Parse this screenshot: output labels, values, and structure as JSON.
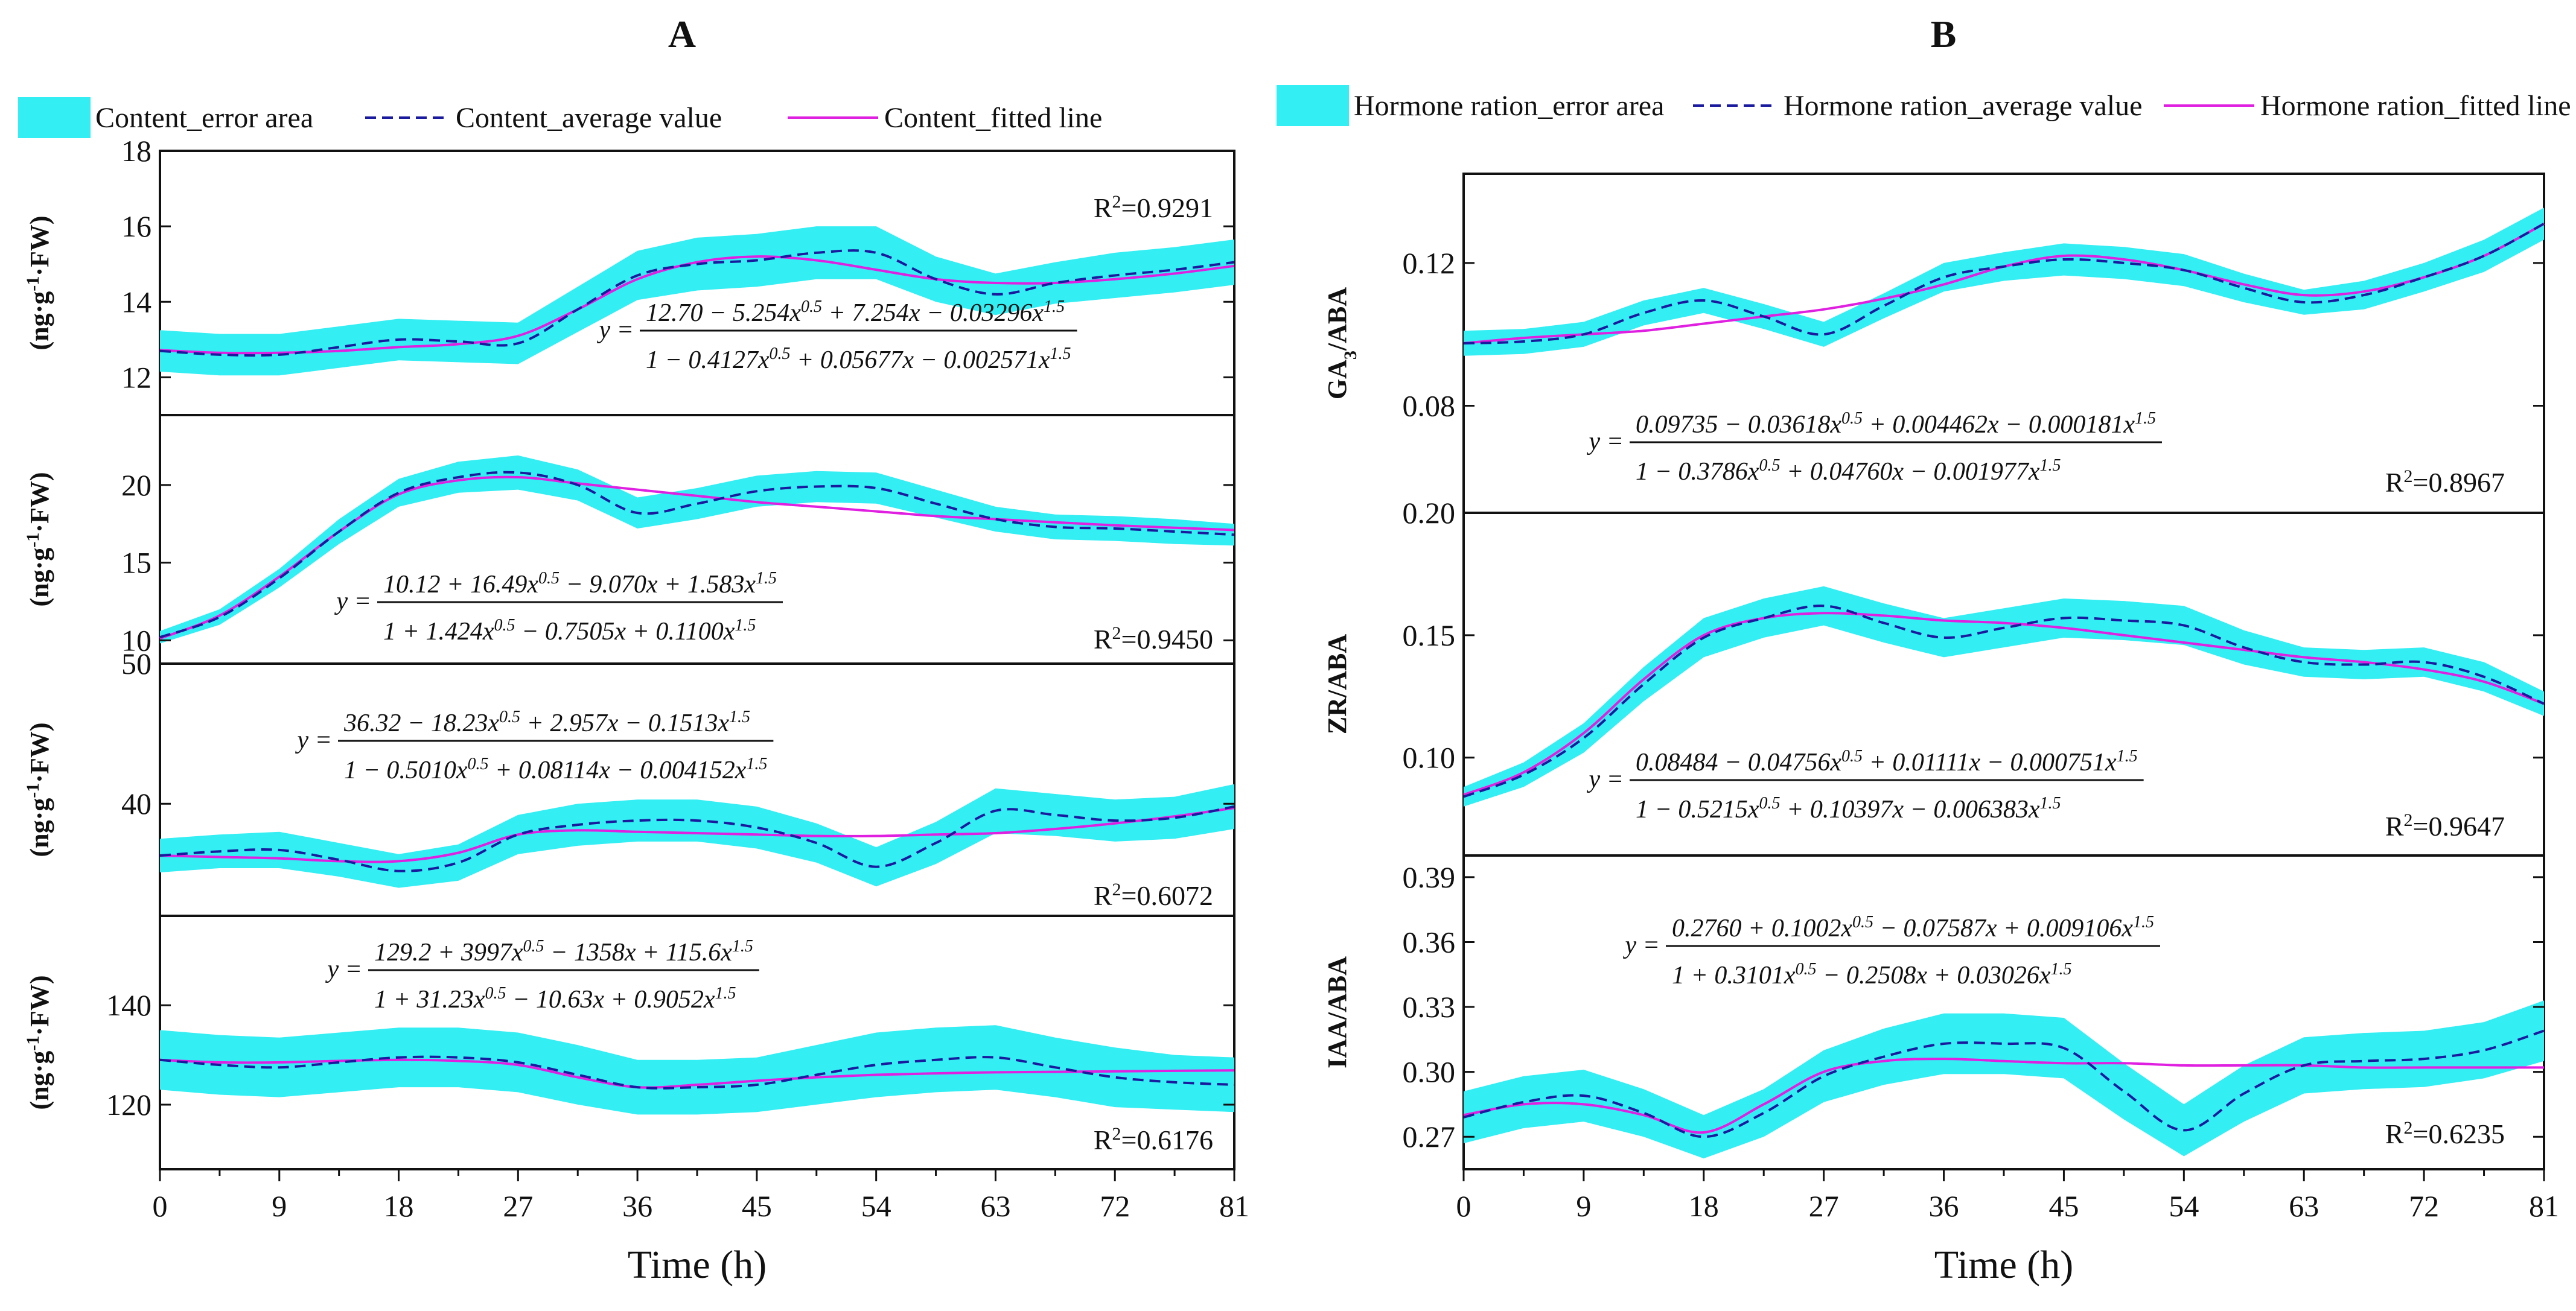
{
  "panel_letters": {
    "a": "A",
    "b": "B"
  },
  "legend_a": {
    "error_label": "Content_error area",
    "average_label": "Content_average value",
    "fitted_label": "Content_fitted line"
  },
  "legend_b": {
    "error_label": "Hormone ration_error area",
    "average_label": "Hormone ration_average value",
    "fitted_label": "Hormone ration_fitted line"
  },
  "colors": {
    "error_fill": "#33eef3",
    "average": "#1a1a9e",
    "fitted": "#e020e0"
  },
  "x_axis": {
    "label": "Time (h)",
    "ticks": [
      "0",
      "9",
      "18",
      "27",
      "36",
      "45",
      "54",
      "63",
      "72",
      "81"
    ]
  },
  "chart_data": [
    {
      "type": "line",
      "id": "A1",
      "panel": "A",
      "ylabel": "(ng·g-1·FW)",
      "ylabel_parts": {
        "prefix": "(ng·g",
        "sup": "-1",
        "suffix": "·FW)"
      },
      "ylim": [
        11,
        18
      ],
      "yticks": [
        "12",
        "14",
        "16",
        "18"
      ],
      "r2": "R2=0.9291",
      "r2_parts": {
        "r": "R",
        "sup": "2",
        "val": "=0.9291"
      },
      "equation": {
        "lhs": "y =",
        "numerator": "12.70 − 5.254x0.5 + 7.254x − 0.03296x1.5",
        "denominator": "1 − 0.4127x0.5 + 0.05677x − 0.002571x1.5"
      },
      "x": [
        0,
        4.5,
        9,
        13.5,
        18,
        22.5,
        27,
        31.5,
        36,
        40.5,
        45,
        49.5,
        54,
        58.5,
        63,
        67.5,
        72,
        76.5,
        81
      ],
      "average": [
        12.7,
        12.6,
        12.6,
        12.8,
        13.0,
        12.95,
        12.9,
        13.8,
        14.7,
        15.0,
        15.1,
        15.3,
        15.3,
        14.6,
        14.2,
        14.5,
        14.7,
        14.85,
        15.05
      ],
      "error_half": [
        0.55,
        0.55,
        0.55,
        0.55,
        0.55,
        0.55,
        0.55,
        0.6,
        0.65,
        0.7,
        0.7,
        0.7,
        0.7,
        0.6,
        0.55,
        0.55,
        0.6,
        0.6,
        0.6
      ],
      "fitted": [
        12.72,
        12.65,
        12.65,
        12.7,
        12.8,
        12.88,
        13.1,
        13.8,
        14.6,
        15.05,
        15.2,
        15.1,
        14.85,
        14.6,
        14.5,
        14.5,
        14.6,
        14.75,
        14.95
      ]
    },
    {
      "type": "line",
      "id": "A2",
      "panel": "A",
      "ylabel": "(ng·g-1·FW)",
      "ylabel_parts": {
        "prefix": "(ng·g",
        "sup": "-1",
        "suffix": "·FW)"
      },
      "ylim": [
        8.5,
        24.5
      ],
      "yticks": [
        "10",
        "15",
        "20"
      ],
      "r2": "R2=0.9450",
      "r2_parts": {
        "r": "R",
        "sup": "2",
        "val": "=0.9450"
      },
      "equation": {
        "lhs": "y =",
        "numerator": "10.12 + 16.49x0.5 − 9.070x + 1.583x1.5",
        "denominator": "1 + 1.424x0.5 − 0.7505x + 0.1100x1.5"
      },
      "x": [
        0,
        4.5,
        9,
        13.5,
        18,
        22.5,
        27,
        31.5,
        36,
        40.5,
        45,
        49.5,
        54,
        58.5,
        63,
        67.5,
        72,
        76.5,
        81
      ],
      "average": [
        10.2,
        11.5,
        14.0,
        17.0,
        19.5,
        20.5,
        20.8,
        20.0,
        18.2,
        18.8,
        19.6,
        19.9,
        19.8,
        18.8,
        17.8,
        17.3,
        17.2,
        17.0,
        16.8
      ],
      "error_half": [
        0.4,
        0.5,
        0.6,
        0.8,
        0.9,
        1.0,
        1.1,
        1.0,
        1.0,
        1.0,
        1.0,
        1.0,
        1.0,
        0.9,
        0.8,
        0.8,
        0.8,
        0.8,
        0.7
      ],
      "fitted": [
        10.12,
        11.6,
        14.1,
        17.0,
        19.4,
        20.3,
        20.5,
        20.1,
        19.7,
        19.3,
        18.9,
        18.6,
        18.3,
        18.0,
        17.8,
        17.6,
        17.4,
        17.25,
        17.1
      ]
    },
    {
      "type": "line",
      "id": "A3",
      "panel": "A",
      "ylabel": "(ng·g-1·FW)",
      "ylabel_parts": {
        "prefix": "(ng·g",
        "sup": "-1",
        "suffix": "·FW)"
      },
      "ylim": [
        32,
        50
      ],
      "yticks": [
        "40",
        "50"
      ],
      "r2": "R2=0.6072",
      "r2_parts": {
        "r": "R",
        "sup": "2",
        "val": "=0.6072"
      },
      "equation": {
        "lhs": "y =",
        "numerator": "36.32 − 18.23x0.5 + 2.957x − 0.1513x1.5",
        "denominator": "1 − 0.5010x0.5 + 0.08114x − 0.004152x1.5"
      },
      "x": [
        0,
        4.5,
        9,
        13.5,
        18,
        22.5,
        27,
        31.5,
        36,
        40.5,
        45,
        49.5,
        54,
        58.5,
        63,
        67.5,
        72,
        76.5,
        81
      ],
      "average": [
        36.3,
        36.6,
        36.7,
        36.0,
        35.2,
        35.8,
        37.8,
        38.5,
        38.8,
        38.8,
        38.3,
        37.2,
        35.5,
        37.2,
        39.5,
        39.2,
        38.8,
        39.0,
        39.8
      ],
      "error_half": [
        1.2,
        1.2,
        1.3,
        1.2,
        1.2,
        1.3,
        1.4,
        1.5,
        1.5,
        1.5,
        1.5,
        1.4,
        1.4,
        1.5,
        1.6,
        1.5,
        1.5,
        1.5,
        1.6
      ],
      "fitted": [
        36.3,
        36.2,
        36.1,
        35.9,
        35.9,
        36.5,
        37.8,
        38.1,
        38.0,
        37.9,
        37.8,
        37.7,
        37.7,
        37.8,
        37.9,
        38.2,
        38.6,
        39.1,
        39.7
      ]
    },
    {
      "type": "line",
      "id": "A4",
      "panel": "A",
      "ylabel": "(ng·g-1·FW)",
      "ylabel_parts": {
        "prefix": "(ng·g",
        "sup": "-1",
        "suffix": "·FW)"
      },
      "ylim": [
        107,
        158
      ],
      "yticks": [
        "120",
        "140"
      ],
      "r2": "R2=0.6176",
      "r2_parts": {
        "r": "R",
        "sup": "2",
        "val": "=0.6176"
      },
      "equation": {
        "lhs": "y =",
        "numerator": "129.2 + 3997x0.5 − 1358x + 115.6x1.5",
        "denominator": "1 + 31.23x0.5 − 10.63x + 0.9052x1.5"
      },
      "x": [
        0,
        4.5,
        9,
        13.5,
        18,
        22.5,
        27,
        31.5,
        36,
        40.5,
        45,
        49.5,
        54,
        58.5,
        63,
        67.5,
        72,
        76.5,
        81
      ],
      "average": [
        129.0,
        128.0,
        127.5,
        128.5,
        129.5,
        129.5,
        128.5,
        126.0,
        123.5,
        123.5,
        124.0,
        126.0,
        128.0,
        129.0,
        129.5,
        127.5,
        125.5,
        124.5,
        124.0
      ],
      "error_half": [
        6,
        6,
        6,
        6,
        6,
        6,
        6,
        6,
        5.5,
        5.5,
        5.5,
        6,
        6.5,
        6.5,
        6.5,
        6,
        6,
        5.5,
        5.5
      ],
      "fitted": [
        129.0,
        128.5,
        128.5,
        128.8,
        129.0,
        128.8,
        128.0,
        125.5,
        123.5,
        124.0,
        124.8,
        125.5,
        126.0,
        126.3,
        126.5,
        126.6,
        126.7,
        126.8,
        126.9
      ]
    },
    {
      "type": "line",
      "id": "B1",
      "panel": "B",
      "ylabel": "GA3/ABA",
      "ylabel_parts": {
        "prefix": "GA",
        "sub": "3",
        "suffix": "/ABA"
      },
      "ylim": [
        0.05,
        0.145
      ],
      "yticks": [
        "0.08",
        "0.12"
      ],
      "r2": "R2=0.8967",
      "r2_parts": {
        "r": "R",
        "sup": "2",
        "val": "=0.8967"
      },
      "equation": {
        "lhs": "y =",
        "numerator": "0.09735 − 0.03618x0.5 + 0.004462x − 0.000181x1.5",
        "denominator": "1 − 0.3786x0.5 + 0.04760x − 0.001977x1.5"
      },
      "x": [
        0,
        4.5,
        9,
        13.5,
        18,
        22.5,
        27,
        31.5,
        36,
        40.5,
        45,
        49.5,
        54,
        58.5,
        63,
        67.5,
        72,
        76.5,
        81
      ],
      "average": [
        0.0975,
        0.098,
        0.1,
        0.106,
        0.1095,
        0.105,
        0.1,
        0.108,
        0.116,
        0.119,
        0.121,
        0.12,
        0.118,
        0.113,
        0.109,
        0.111,
        0.116,
        0.122,
        0.131
      ],
      "error_half": [
        0.0035,
        0.0035,
        0.0035,
        0.0035,
        0.0035,
        0.0035,
        0.0035,
        0.0035,
        0.004,
        0.004,
        0.0045,
        0.0045,
        0.0045,
        0.004,
        0.0035,
        0.004,
        0.004,
        0.0045,
        0.0045
      ],
      "fitted": [
        0.0975,
        0.099,
        0.1,
        0.101,
        0.103,
        0.105,
        0.107,
        0.11,
        0.114,
        0.119,
        0.122,
        0.121,
        0.118,
        0.114,
        0.111,
        0.112,
        0.116,
        0.122,
        0.131
      ]
    },
    {
      "type": "line",
      "id": "B2",
      "panel": "B",
      "ylabel": "ZR/ABA",
      "ylabel_parts": {
        "prefix": "ZR/ABA"
      },
      "ylim": [
        0.06,
        0.2
      ],
      "yticks": [
        "0.10",
        "0.15",
        "0.20"
      ],
      "r2": "R2=0.9647",
      "r2_parts": {
        "r": "R",
        "sup": "2",
        "val": "=0.9647"
      },
      "equation": {
        "lhs": "y =",
        "numerator": "0.08484 − 0.04756x0.5 + 0.01111x − 0.000751x1.5",
        "denominator": "1 − 0.5215x0.5 + 0.10397x − 0.006383x1.5"
      },
      "x": [
        0,
        4.5,
        9,
        13.5,
        18,
        22.5,
        27,
        31.5,
        36,
        40.5,
        45,
        49.5,
        54,
        58.5,
        63,
        67.5,
        72,
        76.5,
        81
      ],
      "average": [
        0.084,
        0.093,
        0.108,
        0.13,
        0.149,
        0.157,
        0.162,
        0.155,
        0.149,
        0.153,
        0.157,
        0.156,
        0.154,
        0.145,
        0.139,
        0.138,
        0.139,
        0.133,
        0.122
      ],
      "error_half": [
        0.004,
        0.005,
        0.006,
        0.007,
        0.008,
        0.008,
        0.008,
        0.008,
        0.008,
        0.008,
        0.008,
        0.008,
        0.008,
        0.007,
        0.006,
        0.006,
        0.006,
        0.006,
        0.005
      ],
      "fitted": [
        0.0848,
        0.094,
        0.11,
        0.132,
        0.15,
        0.157,
        0.159,
        0.158,
        0.156,
        0.155,
        0.153,
        0.15,
        0.147,
        0.144,
        0.141,
        0.139,
        0.136,
        0.131,
        0.122
      ]
    },
    {
      "type": "line",
      "id": "B3",
      "panel": "B",
      "ylabel": "IAA/ABA",
      "ylabel_parts": {
        "prefix": "IAA/ABA"
      },
      "ylim": [
        0.255,
        0.4
      ],
      "yticks": [
        "0.27",
        "0.30",
        "0.33",
        "0.36",
        "0.39"
      ],
      "r2": "R2=0.6235",
      "r2_parts": {
        "r": "R",
        "sup": "2",
        "val": "=0.6235"
      },
      "equation": {
        "lhs": "y =",
        "numerator": "0.2760 + 0.1002x0.5 − 0.07587x + 0.009106x1.5",
        "denominator": "1 + 0.3101x0.5 − 0.2508x + 0.03026x1.5"
      },
      "x": [
        0,
        4.5,
        9,
        13.5,
        18,
        22.5,
        27,
        31.5,
        36,
        40.5,
        45,
        49.5,
        54,
        58.5,
        63,
        67.5,
        72,
        76.5,
        81
      ],
      "average": [
        0.279,
        0.286,
        0.289,
        0.281,
        0.27,
        0.281,
        0.298,
        0.307,
        0.313,
        0.313,
        0.311,
        0.291,
        0.273,
        0.29,
        0.303,
        0.305,
        0.306,
        0.31,
        0.319
      ],
      "error_half": [
        0.012,
        0.012,
        0.012,
        0.011,
        0.01,
        0.011,
        0.012,
        0.013,
        0.014,
        0.014,
        0.014,
        0.013,
        0.012,
        0.013,
        0.013,
        0.013,
        0.013,
        0.013,
        0.014
      ],
      "fitted": [
        0.28,
        0.285,
        0.285,
        0.28,
        0.272,
        0.285,
        0.3,
        0.305,
        0.306,
        0.305,
        0.304,
        0.304,
        0.303,
        0.303,
        0.303,
        0.302,
        0.302,
        0.302,
        0.302
      ]
    }
  ]
}
